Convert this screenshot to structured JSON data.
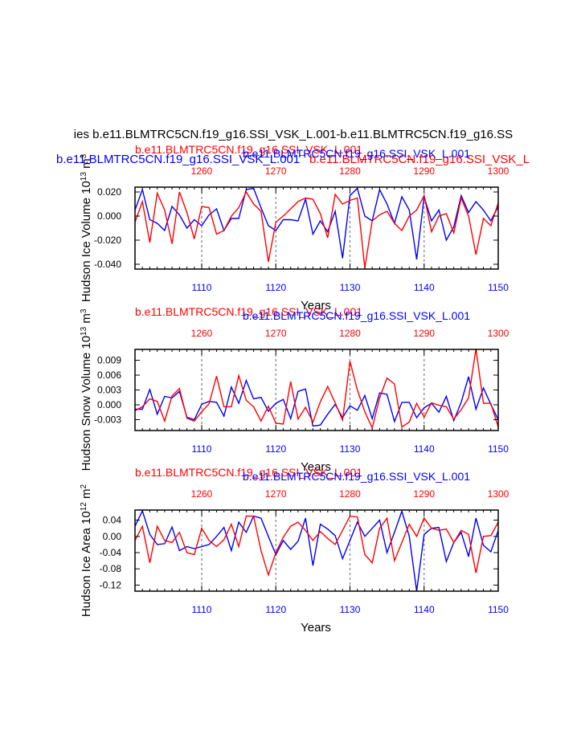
{
  "page_title": "ies b.e11.BLMTRC5CN.f19_g16.SSI_VSK_L.001-b.e11.BLMTRC5CN.f19_g16.SS",
  "page_subtitle_blue": "b.e11.BLMTRC5CN.f19_g16.SSI_VSK_L.001",
  "page_subtitle_red": "b.e11.BLMTRC5CN.f19_g16.SSI_VSK_L",
  "colors": {
    "series_a": "#0000ff",
    "series_b": "#ff0000",
    "axis": "#000000",
    "grid": "#808080"
  },
  "chart_data": [
    {
      "type": "line",
      "title_red": "b.e11.BLMTRC5CN.f19_g16.SSI_VSK_L.001",
      "title_blue": "b.e11.BLMTRC5CN.f19_g16.SSI_VSK_L.001",
      "xlabel": "Years",
      "ylabel": "Hudson Ice Volume 10",
      "ylabel_exp": "13",
      "ylabel_unit": " m",
      "ylabel_unit_exp": "3",
      "ylim": [
        -0.044,
        0.024
      ],
      "yticks": [
        0.02,
        0.0,
        -0.02,
        -0.04
      ],
      "ytick_labels": [
        "0.020",
        "0.000",
        "-0.020",
        "-0.040"
      ],
      "xlim_bottom": [
        1101,
        1150
      ],
      "xlim_top": [
        1251,
        1300
      ],
      "xticks_bottom": [
        "1110",
        "1120",
        "1130",
        "1140",
        "1150"
      ],
      "xticks_top": [
        "1260",
        "1270",
        "1280",
        "1290",
        "1300"
      ],
      "series": [
        {
          "color": "blue",
          "values": [
            0.005,
            0.022,
            -0.003,
            -0.006,
            -0.012,
            0.008,
            0.001,
            -0.01,
            -0.003,
            -0.008,
            0.001,
            0.006,
            -0.012,
            -0.002,
            -0.002,
            0.022,
            0.023,
            0.007,
            -0.008,
            -0.012,
            -0.003,
            -0.003,
            -0.004,
            0.014,
            -0.015,
            -0.004,
            -0.013,
            0.004,
            -0.035,
            0.017,
            0.023,
            0.0,
            -0.004,
            0.022,
            0.01,
            -0.006,
            0.016,
            0.005,
            -0.036,
            0.016,
            -0.004,
            0.005,
            -0.02,
            -0.009,
            0.017,
            0.003,
            0.012,
            0.005,
            -0.004,
            0.008
          ]
        },
        {
          "color": "red",
          "values": [
            -0.005,
            0.012,
            -0.022,
            0.019,
            0.005,
            -0.023,
            0.02,
            0.003,
            -0.019,
            0.008,
            0.007,
            -0.015,
            -0.012,
            0.0,
            0.007,
            0.02,
            0.01,
            0.004,
            -0.038,
            -0.005,
            0.0,
            0.006,
            0.012,
            0.015,
            0.014,
            0.002,
            -0.018,
            0.018,
            0.01,
            0.013,
            0.015,
            -0.043,
            -0.004,
            0.001,
            0.004,
            -0.006,
            -0.012,
            0.0,
            0.005,
            0.017,
            -0.013,
            0.0,
            0.002,
            -0.014,
            0.015,
            0.0,
            -0.032,
            -0.002,
            -0.008,
            0.011
          ]
        }
      ]
    },
    {
      "type": "line",
      "title_red": "b.e11.BLMTRC5CN.f19_g16.SSI_VSK_L.001",
      "title_blue": "b.e11.BLMTRC5CN.f19_g16.SSI_VSK_L.001",
      "xlabel": "Years",
      "ylabel": "Hudson Snow Volume 10",
      "ylabel_exp": "13",
      "ylabel_unit": " m",
      "ylabel_unit_exp": "3",
      "ylim": [
        -0.0052,
        0.0112
      ],
      "yticks": [
        0.009,
        0.006,
        0.003,
        0.0,
        -0.003
      ],
      "ytick_labels": [
        "0.009",
        "0.006",
        "0.003",
        "0.000",
        "-0.003"
      ],
      "xlim_bottom": [
        1101,
        1150
      ],
      "xlim_top": [
        1251,
        1300
      ],
      "xticks_bottom": [
        "1110",
        "1120",
        "1130",
        "1140",
        "1150"
      ],
      "xticks_top": [
        "1260",
        "1270",
        "1280",
        "1290",
        "1300"
      ],
      "series": [
        {
          "color": "blue",
          "values": [
            -0.0009,
            -0.0009,
            0.0031,
            -0.0019,
            0.0017,
            0.0014,
            0.0027,
            -0.0025,
            -0.003,
            0.0001,
            0.0007,
            0.0005,
            -0.0023,
            0.0036,
            0.0003,
            0.0049,
            0.0012,
            0.0015,
            -0.0013,
            0.0003,
            0.0011,
            -0.0028,
            0.0027,
            0.0032,
            -0.0043,
            -0.0041,
            -0.0019,
            0.0001,
            -0.0026,
            -0.0002,
            -0.0011,
            0.0019,
            -0.0028,
            0.0024,
            0.0021,
            -0.0034,
            0.0005,
            0.0005,
            -0.0026,
            -0.0006,
            0.0003,
            -0.0015,
            0.0017,
            -0.0032,
            0.0005,
            0.0057,
            -0.0009,
            0.0034,
            0.0001,
            -0.003
          ]
        },
        {
          "color": "red",
          "values": [
            -0.0012,
            -0.0004,
            0.0012,
            0.0007,
            -0.0033,
            0.0018,
            0.0033,
            -0.0027,
            -0.0033,
            -0.0014,
            0.0002,
            0.0058,
            -0.0004,
            -0.0004,
            0.0059,
            0.0009,
            -0.0004,
            -0.0033,
            -0.0003,
            -0.0037,
            -0.0039,
            0.0047,
            -0.0029,
            -0.0005,
            -0.0035,
            0.0006,
            0.0037,
            0.0004,
            -0.0031,
            0.0088,
            0.003,
            -0.0014,
            -0.0047,
            0.0014,
            0.0054,
            0.0042,
            -0.0045,
            -0.0035,
            0.0003,
            -0.0025,
            0.0004,
            -0.0001,
            -0.0004,
            -0.0029,
            -0.001,
            0.0014,
            0.0113,
            0.0003,
            0.0003,
            -0.0045
          ]
        }
      ]
    },
    {
      "type": "line",
      "title_red": "b.e11.BLMTRC5CN.f19_g16.SSI_VSK_L.001",
      "title_blue": "b.e11.BLMTRC5CN.f19_g16.SSI_VSK_L.001",
      "xlabel": "Years",
      "ylabel": "Hudson Ice Area 10",
      "ylabel_exp": "12",
      "ylabel_unit": " m",
      "ylabel_unit_exp": "2",
      "ylim": [
        -0.135,
        0.065
      ],
      "yticks": [
        0.04,
        0.0,
        -0.04,
        -0.08,
        -0.12
      ],
      "ytick_labels": [
        "0.04",
        "0.00",
        "-0.04",
        "-0.08",
        "-0.12"
      ],
      "xlim_bottom": [
        1101,
        1150
      ],
      "xlim_top": [
        1251,
        1300
      ],
      "xticks_bottom": [
        "1110",
        "1120",
        "1130",
        "1140",
        "1150"
      ],
      "xticks_top": [
        "1260",
        "1270",
        "1280",
        "1290",
        "1300"
      ],
      "series": [
        {
          "color": "blue",
          "values": [
            0.025,
            0.063,
            0.005,
            -0.02,
            -0.018,
            0.023,
            -0.035,
            -0.025,
            -0.03,
            -0.025,
            -0.02,
            0.0,
            0.022,
            -0.035,
            0.035,
            0.01,
            0.05,
            0.045,
            0.0,
            -0.045,
            -0.01,
            -0.032,
            -0.012,
            0.045,
            -0.072,
            0.03,
            0.018,
            0.002,
            -0.055,
            -0.01,
            0.035,
            0.0,
            0.02,
            0.04,
            -0.04,
            0.01,
            0.062,
            0.0,
            -0.135,
            0.005,
            0.02,
            0.022,
            -0.062,
            -0.015,
            0.01,
            -0.05,
            0.045,
            -0.022,
            -0.038,
            0.015
          ]
        },
        {
          "color": "red",
          "values": [
            -0.01,
            0.025,
            -0.065,
            0.025,
            -0.01,
            -0.015,
            0.01,
            -0.04,
            -0.045,
            0.02,
            -0.01,
            -0.025,
            -0.008,
            0.03,
            -0.025,
            0.05,
            0.05,
            -0.035,
            -0.095,
            -0.04,
            -0.002,
            0.025,
            0.035,
            0.015,
            -0.01,
            0.012,
            -0.005,
            -0.02,
            0.015,
            0.05,
            0.048,
            -0.045,
            -0.065,
            0.02,
            0.045,
            -0.06,
            -0.015,
            0.03,
            0.0,
            0.045,
            0.02,
            0.015,
            0.018,
            -0.015,
            0.015,
            0.005,
            -0.09,
            0.0,
            0.002,
            0.035
          ]
        }
      ]
    }
  ]
}
